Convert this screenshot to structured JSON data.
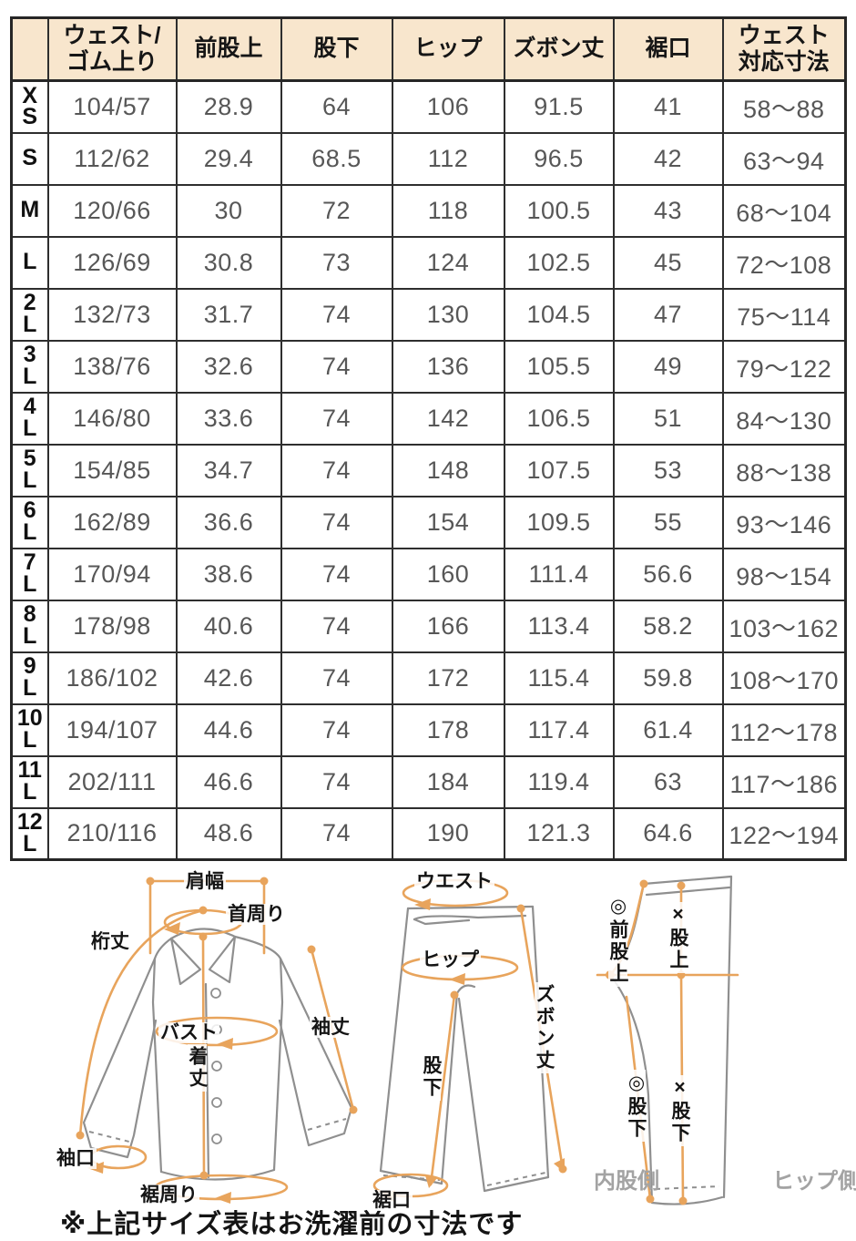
{
  "table": {
    "columns": [
      "",
      "ウェスト/\nゴム上り",
      "前股上",
      "股下",
      "ヒップ",
      "ズボン丈",
      "裾口",
      "ウェスト\n対応寸法"
    ],
    "rows": [
      {
        "size": "X\nS",
        "values": [
          "104/57",
          "28.9",
          "64",
          "106",
          "91.5",
          "41",
          "58〜88"
        ]
      },
      {
        "size": "S",
        "values": [
          "112/62",
          "29.4",
          "68.5",
          "112",
          "96.5",
          "42",
          "63〜94"
        ]
      },
      {
        "size": "M",
        "values": [
          "120/66",
          "30",
          "72",
          "118",
          "100.5",
          "43",
          "68〜104"
        ]
      },
      {
        "size": "L",
        "values": [
          "126/69",
          "30.8",
          "73",
          "124",
          "102.5",
          "45",
          "72〜108"
        ]
      },
      {
        "size": "2\nL",
        "values": [
          "132/73",
          "31.7",
          "74",
          "130",
          "104.5",
          "47",
          "75〜114"
        ]
      },
      {
        "size": "3\nL",
        "values": [
          "138/76",
          "32.6",
          "74",
          "136",
          "105.5",
          "49",
          "79〜122"
        ]
      },
      {
        "size": "4\nL",
        "values": [
          "146/80",
          "33.6",
          "74",
          "142",
          "106.5",
          "51",
          "84〜130"
        ]
      },
      {
        "size": "5\nL",
        "values": [
          "154/85",
          "34.7",
          "74",
          "148",
          "107.5",
          "53",
          "88〜138"
        ]
      },
      {
        "size": "6\nL",
        "values": [
          "162/89",
          "36.6",
          "74",
          "154",
          "109.5",
          "55",
          "93〜146"
        ]
      },
      {
        "size": "7\nL",
        "values": [
          "170/94",
          "38.6",
          "74",
          "160",
          "111.4",
          "56.6",
          "98〜154"
        ]
      },
      {
        "size": "8\nL",
        "values": [
          "178/98",
          "40.6",
          "74",
          "166",
          "113.4",
          "58.2",
          "103〜162"
        ]
      },
      {
        "size": "9\nL",
        "values": [
          "186/102",
          "42.6",
          "74",
          "172",
          "115.4",
          "59.8",
          "108〜170"
        ]
      },
      {
        "size": "10\nL",
        "values": [
          "194/107",
          "44.6",
          "74",
          "178",
          "117.4",
          "61.4",
          "112〜178"
        ]
      },
      {
        "size": "11\nL",
        "values": [
          "202/111",
          "46.6",
          "74",
          "184",
          "119.4",
          "63",
          "117〜186"
        ]
      },
      {
        "size": "12\nL",
        "values": [
          "210/116",
          "48.6",
          "74",
          "190",
          "121.3",
          "64.6",
          "122〜194"
        ]
      }
    ]
  },
  "diagrams": {
    "shirt": {
      "shoulder_width": "肩幅",
      "neck": "首周り",
      "sleeve_reach": "桁丈",
      "bust": "バスト",
      "sleeve_length": "袖丈",
      "body_length": "着丈",
      "cuff": "袖口",
      "hem_round": "裾周り"
    },
    "pants_front": {
      "waist": "ウエスト",
      "hip": "ヒップ",
      "pants_length": "ズボン丈",
      "inseam": "股下",
      "hem": "裾口"
    },
    "pants_side": {
      "front_rise": "◎前股上",
      "rise": "×股上",
      "inseam_front": "◎股下",
      "inseam_back": "×股下",
      "inner_side": "内股側",
      "hip_side": "ヒップ側"
    }
  },
  "note": "※上記サイズ表はお洗濯前の寸法です",
  "colors": {
    "header_bg": "#f8e6cd",
    "table_border": "#262626",
    "value_text": "#575757",
    "annotation_orange": "#e8a45c",
    "garment_gray": "#8f8f8f",
    "side_label_gray": "#a3a3a3"
  }
}
